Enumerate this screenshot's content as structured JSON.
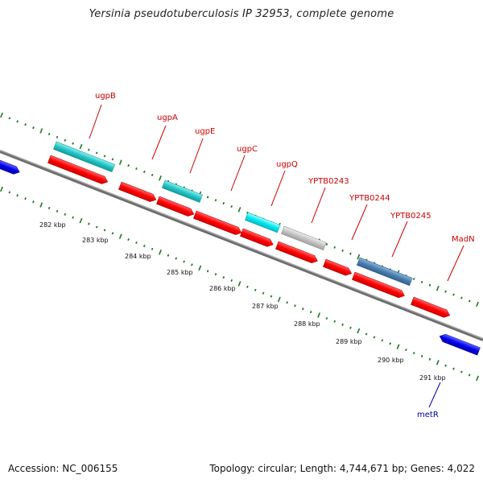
{
  "title": "Yersinia pseudotuberculosis IP 32953, complete genome",
  "footer": {
    "accession": "Accession: NC_006155",
    "summary": "Topology: circular; Length: 4,744,671 bp; Genes: 4,022"
  },
  "colors": {
    "backbone": "#7a7a7a",
    "tick": "#1e7a1e",
    "gene_red": "#ff0000",
    "gene_teal": "#22c6c6",
    "gene_cyan": "#00e8f0",
    "gene_gray": "#c4c4c4",
    "gene_steel": "#4a7fb0",
    "gene_blue": "#0000ee",
    "label_red": "#cc0000",
    "label_blue": "#000099"
  },
  "kbp_labels": [
    "282 kbp",
    "283 kbp",
    "284 kbp",
    "285 kbp",
    "286 kbp",
    "287 kbp",
    "288 kbp",
    "289 kbp",
    "290 kbp",
    "291 kbp"
  ],
  "gene_labels": [
    {
      "name": "ugpB",
      "color": "red"
    },
    {
      "name": "ugpA",
      "color": "red"
    },
    {
      "name": "ugpE",
      "color": "red"
    },
    {
      "name": "ugpC",
      "color": "red"
    },
    {
      "name": "ugpQ",
      "color": "red"
    },
    {
      "name": "YPTB0243",
      "color": "red"
    },
    {
      "name": "YPTB0244",
      "color": "red"
    },
    {
      "name": "YPTB0245",
      "color": "red"
    },
    {
      "name": "MadN",
      "color": "red"
    },
    {
      "name": "metR",
      "color": "blue"
    }
  ]
}
